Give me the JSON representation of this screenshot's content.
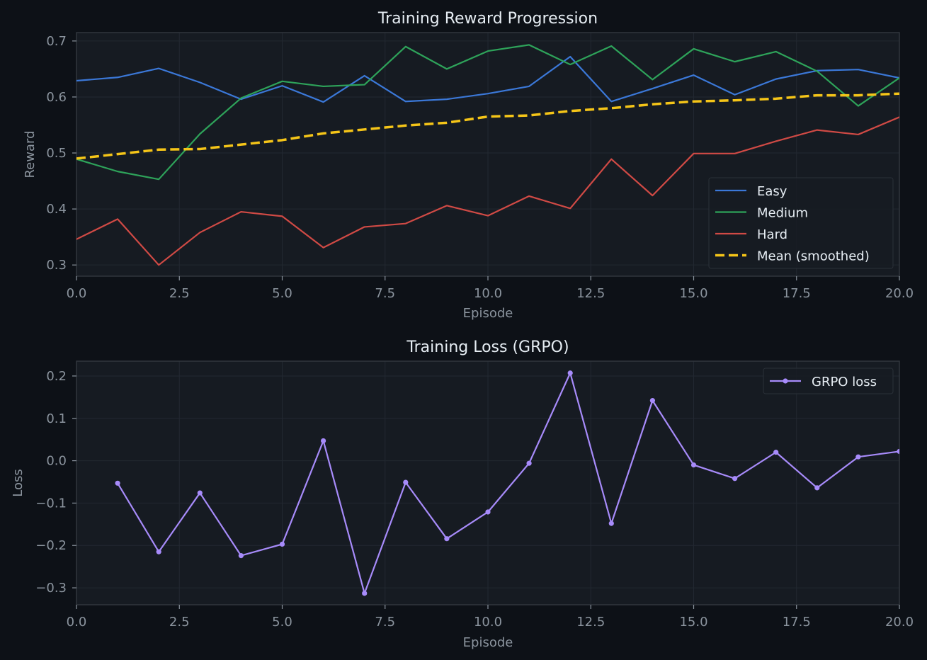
{
  "colors": {
    "background": "#0d1117",
    "plot_bg": "#161b22",
    "grid": "#222831",
    "spine": "#30363d",
    "text": "#e6edf3",
    "muted": "#8b949e"
  },
  "chart_data": [
    {
      "type": "line",
      "title": "Training Reward Progression",
      "xlabel": "Episode",
      "ylabel": "Reward",
      "xlim": [
        0,
        20
      ],
      "ylim": [
        0.28,
        0.715
      ],
      "xticks": [
        "0.0",
        "2.5",
        "5.0",
        "7.5",
        "10.0",
        "12.5",
        "15.0",
        "17.5",
        "20.0"
      ],
      "yticks": [
        "0.3",
        "0.4",
        "0.5",
        "0.6",
        "0.7"
      ],
      "grid": true,
      "legend_position": "lower-right",
      "x": [
        0,
        1,
        2,
        3,
        4,
        5,
        6,
        7,
        8,
        9,
        10,
        11,
        12,
        13,
        14,
        15,
        16,
        17,
        18,
        19,
        20
      ],
      "series": [
        {
          "name": "Easy",
          "color": "#3b78d8",
          "dashed": false,
          "width": 2.2,
          "values": [
            0.629,
            0.635,
            0.651,
            0.626,
            0.596,
            0.62,
            0.591,
            0.638,
            0.592,
            0.596,
            0.606,
            0.619,
            0.672,
            0.592,
            0.615,
            0.639,
            0.604,
            0.632,
            0.647,
            0.649,
            0.634
          ]
        },
        {
          "name": "Medium",
          "color": "#2ea35a",
          "dashed": false,
          "width": 2.2,
          "values": [
            0.489,
            0.467,
            0.453,
            0.534,
            0.598,
            0.628,
            0.619,
            0.622,
            0.69,
            0.65,
            0.682,
            0.693,
            0.658,
            0.691,
            0.631,
            0.686,
            0.663,
            0.681,
            0.646,
            0.584,
            0.634
          ]
        },
        {
          "name": "Hard",
          "color": "#d04a45",
          "dashed": false,
          "width": 2.2,
          "values": [
            0.346,
            0.382,
            0.3,
            0.358,
            0.395,
            0.387,
            0.331,
            0.368,
            0.374,
            0.406,
            0.388,
            0.423,
            0.401,
            0.489,
            0.424,
            0.499,
            0.499,
            0.521,
            0.541,
            0.533,
            0.564
          ]
        },
        {
          "name": "Mean (smoothed)",
          "color": "#f5c518",
          "dashed": true,
          "width": 3.5,
          "values": [
            0.49,
            0.498,
            0.506,
            0.507,
            0.515,
            0.523,
            0.535,
            0.542,
            0.549,
            0.554,
            0.565,
            0.567,
            0.575,
            0.58,
            0.587,
            0.592,
            0.594,
            0.597,
            0.603,
            0.603,
            0.606
          ]
        }
      ]
    },
    {
      "type": "line",
      "title": "Training Loss (GRPO)",
      "xlabel": "Episode",
      "ylabel": "Loss",
      "xlim": [
        0,
        20
      ],
      "ylim": [
        -0.34,
        0.235
      ],
      "xticks": [
        "0.0",
        "2.5",
        "5.0",
        "7.5",
        "10.0",
        "12.5",
        "15.0",
        "17.5",
        "20.0"
      ],
      "yticks": [
        "0.2",
        "0.1",
        "0.0",
        "−0.1",
        "−0.2",
        "−0.3"
      ],
      "grid": true,
      "legend_position": "upper-right",
      "x": [
        1,
        2,
        3,
        4,
        5,
        6,
        7,
        8,
        9,
        10,
        11,
        12,
        13,
        14,
        15,
        16,
        17,
        18,
        19,
        20
      ],
      "series": [
        {
          "name": "GRPO loss",
          "color": "#a78bfa",
          "dashed": false,
          "width": 2.2,
          "markers": true,
          "values": [
            -0.053,
            -0.215,
            -0.076,
            -0.224,
            -0.197,
            0.047,
            -0.313,
            -0.051,
            -0.184,
            -0.121,
            -0.006,
            0.207,
            -0.148,
            0.142,
            -0.01,
            -0.042,
            0.02,
            -0.064,
            0.009,
            0.022
          ]
        }
      ]
    }
  ]
}
